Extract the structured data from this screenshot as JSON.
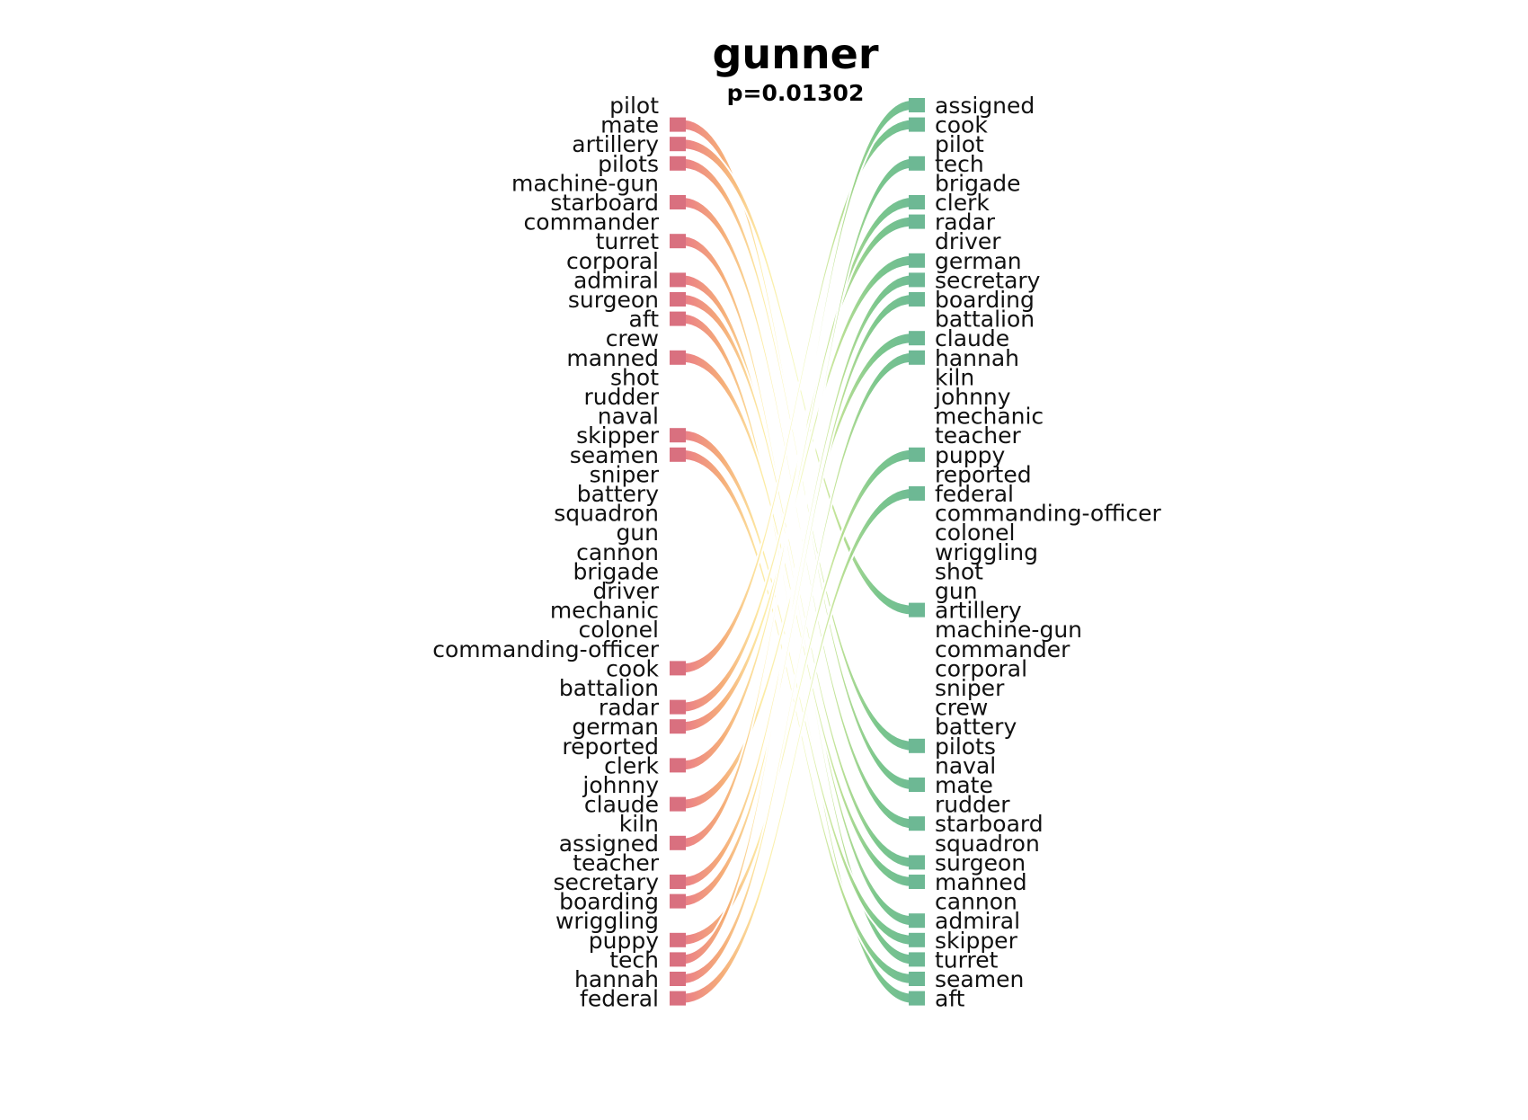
{
  "chart_data": {
    "type": "slope-ranking",
    "title": "gunner",
    "subtitle": "p=0.01302",
    "left_ranking": [
      "pilot",
      "mate",
      "artillery",
      "pilots",
      "machine-gun",
      "starboard",
      "commander",
      "turret",
      "corporal",
      "admiral",
      "surgeon",
      "aft",
      "crew",
      "manned",
      "shot",
      "rudder",
      "naval",
      "skipper",
      "seamen",
      "sniper",
      "battery",
      "squadron",
      "gun",
      "cannon",
      "brigade",
      "driver",
      "mechanic",
      "colonel",
      "commanding-officer",
      "cook",
      "battalion",
      "radar",
      "german",
      "reported",
      "clerk",
      "johnny",
      "claude",
      "kiln",
      "assigned",
      "teacher",
      "secretary",
      "boarding",
      "wriggling",
      "puppy",
      "tech",
      "hannah",
      "federal"
    ],
    "right_ranking": [
      "assigned",
      "cook",
      "pilot",
      "tech",
      "brigade",
      "clerk",
      "radar",
      "driver",
      "german",
      "secretary",
      "boarding",
      "battalion",
      "claude",
      "hannah",
      "kiln",
      "johnny",
      "mechanic",
      "teacher",
      "puppy",
      "reported",
      "federal",
      "commanding-officer",
      "colonel",
      "wriggling",
      "shot",
      "gun",
      "artillery",
      "machine-gun",
      "commander",
      "corporal",
      "sniper",
      "crew",
      "battery",
      "pilots",
      "naval",
      "mate",
      "rudder",
      "starboard",
      "squadron",
      "surgeon",
      "manned",
      "cannon",
      "admiral",
      "skipper",
      "turret",
      "seamen",
      "aft"
    ],
    "connected_words": [
      "mate",
      "artillery",
      "pilots",
      "starboard",
      "turret",
      "admiral",
      "surgeon",
      "aft",
      "manned",
      "skipper",
      "seamen",
      "cook",
      "radar",
      "german",
      "clerk",
      "claude",
      "assigned",
      "secretary",
      "boarding",
      "puppy",
      "tech",
      "hannah",
      "federal"
    ],
    "colors": {
      "left_bar": "#d9707f",
      "right_bar": "#6db894",
      "gradient": [
        "#e8707a",
        "#f4a46a",
        "#fde99a",
        "#f3f8b8",
        "#b6de8a",
        "#6cc080",
        "#5fb38a"
      ]
    }
  }
}
